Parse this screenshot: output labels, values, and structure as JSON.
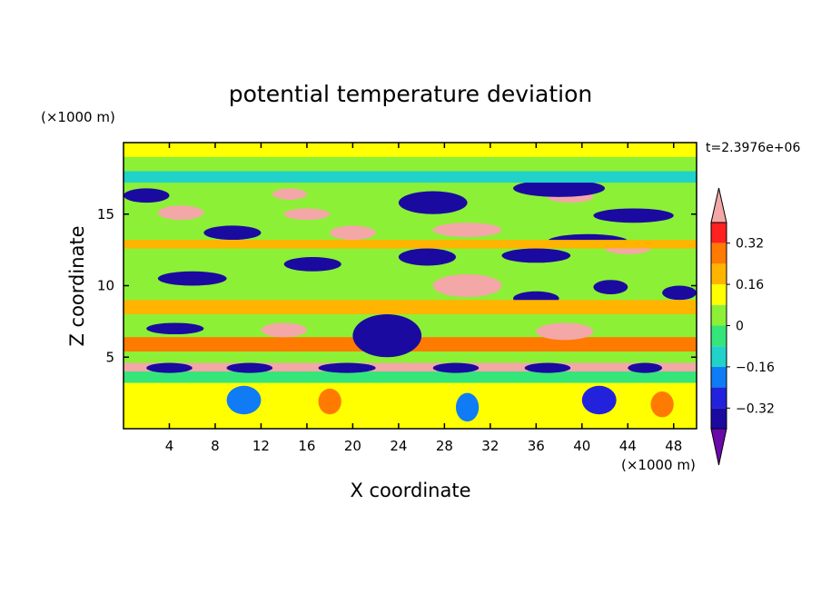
{
  "chart_data": {
    "type": "heatmap",
    "title": "potential temperature deviation",
    "time_label": "t=2.3976e+06",
    "xlabel": "X coordinate",
    "ylabel": "Z coordinate",
    "x_unit_label": "(×1000 m)",
    "y_unit_label": "(×1000 m)",
    "xlim": [
      0,
      50
    ],
    "ylim": [
      0,
      20
    ],
    "x_ticks": [
      4,
      8,
      12,
      16,
      20,
      24,
      28,
      32,
      36,
      40,
      44,
      48
    ],
    "y_ticks": [
      5,
      10,
      15
    ],
    "colorbar": {
      "labels": [
        "0.32",
        "0.16",
        "0",
        "-0.16",
        "-0.32"
      ],
      "levels": [
        -0.4,
        -0.32,
        -0.24,
        -0.16,
        -0.08,
        0,
        0.08,
        0.16,
        0.24,
        0.32,
        0.4
      ],
      "colors": [
        "#6a0aab",
        "#1a0aa0",
        "#2222dd",
        "#0f7cf5",
        "#21d2c8",
        "#36e57a",
        "#8cf036",
        "#ffff00",
        "#ffb400",
        "#ff7a00",
        "#ff2020",
        "#f4a7a7"
      ],
      "extend": "both"
    },
    "background_level": 0.04,
    "features": [
      {
        "x": [
          0,
          50
        ],
        "z": [
          19.0,
          20.0
        ],
        "value": 0.08
      },
      {
        "x": [
          0,
          50
        ],
        "z": [
          5.4,
          6.4
        ],
        "value": 0.24
      },
      {
        "x": [
          0,
          50
        ],
        "z": [
          4.0,
          4.6
        ],
        "value": 0.4
      },
      {
        "x": [
          0,
          50
        ],
        "z": [
          3.2,
          4.0
        ],
        "value": -0.06
      },
      {
        "x": [
          0,
          50
        ],
        "z": [
          0.0,
          3.2
        ],
        "value": 0.14
      },
      {
        "x": [
          2,
          6
        ],
        "z": [
          3.9,
          4.6
        ],
        "value": -0.36
      },
      {
        "x": [
          9,
          13
        ],
        "z": [
          3.9,
          4.6
        ],
        "value": -0.36
      },
      {
        "x": [
          17,
          22
        ],
        "z": [
          3.9,
          4.6
        ],
        "value": -0.36
      },
      {
        "x": [
          27,
          31
        ],
        "z": [
          3.9,
          4.6
        ],
        "value": -0.36
      },
      {
        "x": [
          35,
          39
        ],
        "z": [
          3.9,
          4.6
        ],
        "value": -0.36
      },
      {
        "x": [
          44,
          47
        ],
        "z": [
          3.9,
          4.6
        ],
        "value": -0.36
      },
      {
        "x": [
          12,
          16
        ],
        "z": [
          6.4,
          7.4
        ],
        "value": 0.4
      },
      {
        "x": [
          36,
          41
        ],
        "z": [
          6.2,
          7.4
        ],
        "value": 0.4
      },
      {
        "x": [
          27,
          33
        ],
        "z": [
          9.2,
          10.8
        ],
        "value": 0.4
      },
      {
        "x": [
          20,
          26
        ],
        "z": [
          5.0,
          8.0
        ],
        "value": -0.38
      },
      {
        "x": [
          2,
          7
        ],
        "z": [
          6.6,
          7.4
        ],
        "value": -0.36
      },
      {
        "x": [
          3,
          7
        ],
        "z": [
          14.6,
          15.6
        ],
        "value": 0.4
      },
      {
        "x": [
          14,
          18
        ],
        "z": [
          14.6,
          15.4
        ],
        "value": 0.4
      },
      {
        "x": [
          18,
          22
        ],
        "z": [
          13.2,
          14.2
        ],
        "value": 0.4
      },
      {
        "x": [
          27,
          33
        ],
        "z": [
          13.4,
          14.4
        ],
        "value": 0.4
      },
      {
        "x": [
          13,
          16
        ],
        "z": [
          16.0,
          16.8
        ],
        "value": 0.4
      },
      {
        "x": [
          37,
          41
        ],
        "z": [
          15.8,
          16.6
        ],
        "value": 0.4
      },
      {
        "x": [
          42,
          46
        ],
        "z": [
          12.2,
          13.0
        ],
        "value": 0.4
      },
      {
        "x": [
          0,
          4
        ],
        "z": [
          15.8,
          16.8
        ],
        "value": -0.36
      },
      {
        "x": [
          7,
          12
        ],
        "z": [
          13.2,
          14.2
        ],
        "value": -0.36
      },
      {
        "x": [
          24,
          30
        ],
        "z": [
          15.0,
          16.6
        ],
        "value": -0.36
      },
      {
        "x": [
          34,
          42
        ],
        "z": [
          16.2,
          17.4
        ],
        "value": -0.36
      },
      {
        "x": [
          41,
          48
        ],
        "z": [
          14.4,
          15.4
        ],
        "value": -0.36
      },
      {
        "x": [
          3,
          9
        ],
        "z": [
          10.0,
          11.0
        ],
        "value": -0.36
      },
      {
        "x": [
          14,
          19
        ],
        "z": [
          11.0,
          12.0
        ],
        "value": -0.36
      },
      {
        "x": [
          33,
          39
        ],
        "z": [
          11.6,
          12.6
        ],
        "value": -0.36
      },
      {
        "x": [
          34,
          38
        ],
        "z": [
          8.6,
          9.6
        ],
        "value": -0.36
      },
      {
        "x": [
          41,
          44
        ],
        "z": [
          9.4,
          10.4
        ],
        "value": -0.36
      },
      {
        "x": [
          47,
          50
        ],
        "z": [
          9.0,
          10.0
        ],
        "value": -0.36
      },
      {
        "x": [
          37,
          44
        ],
        "z": [
          12.6,
          13.6
        ],
        "value": -0.36
      },
      {
        "x": [
          24,
          29
        ],
        "z": [
          11.4,
          12.6
        ],
        "value": -0.36
      },
      {
        "x": [
          0,
          50
        ],
        "z": [
          8.0,
          9.0
        ],
        "value": 0.2
      },
      {
        "x": [
          0,
          50
        ],
        "z": [
          12.6,
          13.2
        ],
        "value": 0.18
      },
      {
        "x": [
          0,
          50
        ],
        "z": [
          17.2,
          18.0
        ],
        "value": -0.14
      },
      {
        "x": [
          9,
          12
        ],
        "z": [
          1.0,
          3.0
        ],
        "value": -0.2
      },
      {
        "x": [
          17,
          19
        ],
        "z": [
          1.0,
          2.8
        ],
        "value": 0.3
      },
      {
        "x": [
          29,
          31
        ],
        "z": [
          0.5,
          2.5
        ],
        "value": -0.2
      },
      {
        "x": [
          40,
          43
        ],
        "z": [
          1.0,
          3.0
        ],
        "value": -0.28
      },
      {
        "x": [
          46,
          48
        ],
        "z": [
          0.8,
          2.6
        ],
        "value": 0.3
      }
    ]
  }
}
